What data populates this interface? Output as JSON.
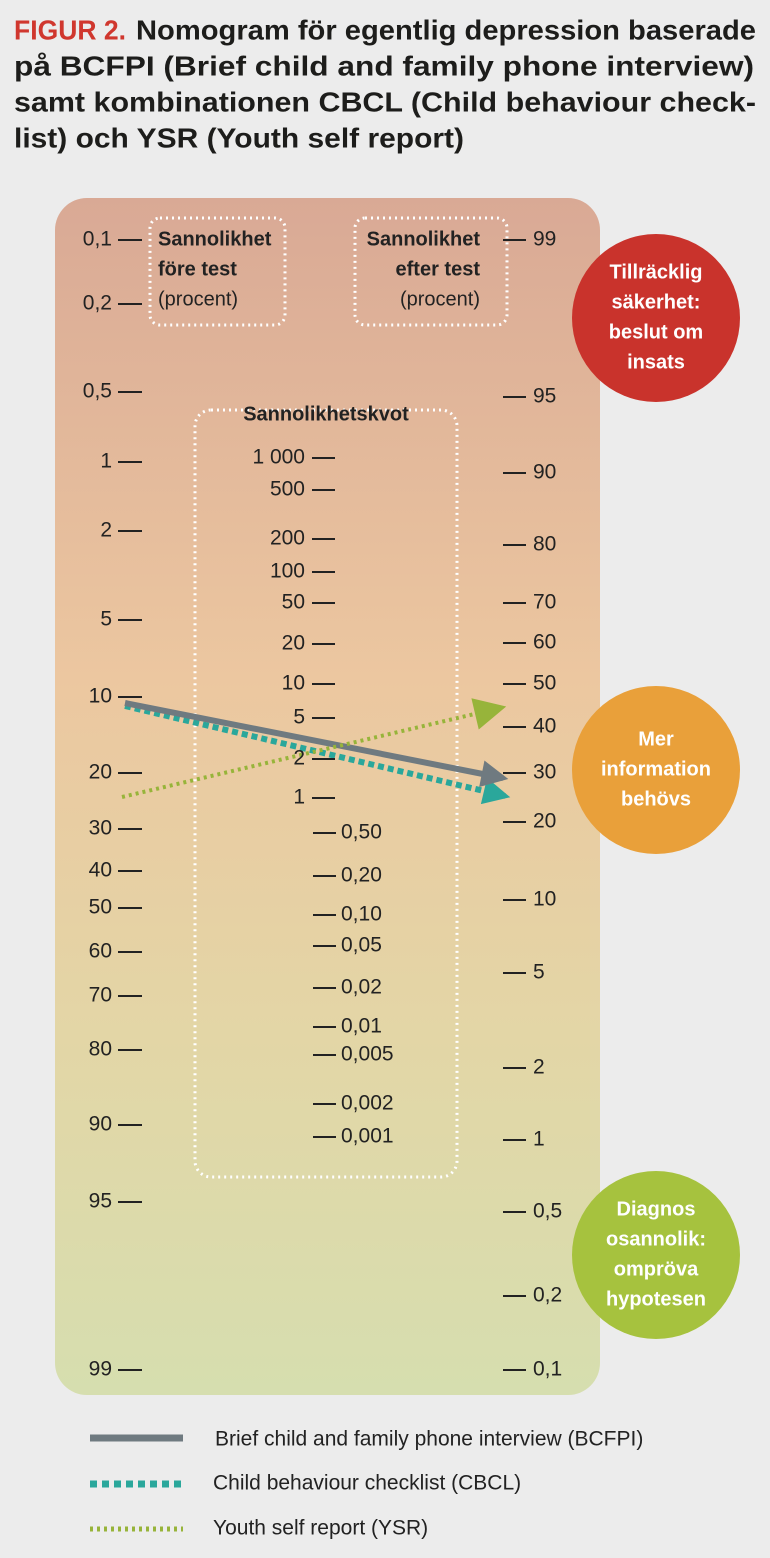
{
  "header": {
    "label": "FIGUR 2.",
    "lines": [
      "Nomogram för egentlig depression baserade",
      "på BCFPI (Brief child and family phone interview)",
      "samt kombinationen CBCL (Child behaviour check-",
      "list) och YSR (Youth self report)"
    ]
  },
  "left_scale": {
    "heading": [
      "Sannolikhet",
      "före test"
    ],
    "unit": "(procent)",
    "ticks": [
      "0,1",
      "0,2",
      "0,5",
      "1",
      "2",
      "5",
      "10",
      "20",
      "30",
      "40",
      "50",
      "60",
      "70",
      "80",
      "90",
      "95",
      "99"
    ]
  },
  "right_scale": {
    "heading": [
      "Sannolikhet",
      "efter test"
    ],
    "unit": "(procent)",
    "ticks": [
      "99",
      "95",
      "90",
      "80",
      "70",
      "60",
      "50",
      "40",
      "30",
      "20",
      "10",
      "5",
      "2",
      "1",
      "0,5",
      "0,2",
      "0,1"
    ]
  },
  "middle_scale": {
    "heading": "Sannolikhetskvot",
    "ticks_high": [
      "1 000",
      "500",
      "200",
      "100",
      "50",
      "20",
      "10",
      "5",
      "2",
      "1"
    ],
    "ticks_low": [
      "0,50",
      "0,20",
      "0,10",
      "0,05",
      "0,02",
      "0,01",
      "0,005",
      "0,002",
      "0,001"
    ]
  },
  "zones": [
    {
      "lines": [
        "Tillräcklig",
        "säkerhet:",
        "beslut om",
        "insats"
      ]
    },
    {
      "lines": [
        "Mer",
        "information",
        "behövs"
      ]
    },
    {
      "lines": [
        "Diagnos",
        "osannolik:",
        "ompröva",
        "hypotesen"
      ]
    }
  ],
  "legend": [
    "Brief child and family phone interview (BCFPI)",
    "Child behaviour checklist (CBCL)",
    "Youth self report (YSR)"
  ]
}
